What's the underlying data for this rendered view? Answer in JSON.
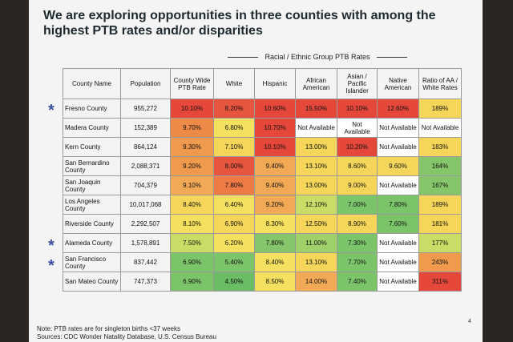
{
  "header": {
    "title": "We are exploring opportunities in three counties with among the highest PTB rates and/or disparities"
  },
  "table": {
    "group_header": "Racial / Ethnic Group PTB Rates",
    "columns": [
      "County Name",
      "Population",
      "County Wide PTB Rate",
      "White",
      "Hispanic",
      "African American",
      "Asian / Pacific Islander",
      "Native American",
      "Ratio of AA / White Rates"
    ],
    "rows": [
      {
        "marker": "*",
        "cells": [
          "Fresno County",
          "955,272",
          "10.10%",
          "8.20%",
          "10.60%",
          "15.50%",
          "10.10%",
          "12.60%",
          "189%"
        ],
        "colors": [
          "#f4f4f4",
          "#f4f4f4",
          "#e5483b",
          "#e8553e",
          "#e5483b",
          "#e5483b",
          "#e5483b",
          "#e5483b",
          "#f5d65a"
        ]
      },
      {
        "cells": [
          "Madera County",
          "152,389",
          "9.70%",
          "6.80%",
          "10.70%",
          "Not Available",
          "Not Available",
          "Not Available",
          "Not Available"
        ],
        "colors": [
          "#f4f4f4",
          "#f4f4f4",
          "#ee8a48",
          "#f5e15f",
          "#e5483b",
          "#ffffff",
          "#ffffff",
          "#ffffff",
          "#ffffff"
        ]
      },
      {
        "cells": [
          "Kern County",
          "864,124",
          "9.30%",
          "7.10%",
          "10.10%",
          "13.00%",
          "10.20%",
          "Not Available",
          "183%"
        ],
        "colors": [
          "#f4f4f4",
          "#f4f4f4",
          "#f09a4e",
          "#f5d65a",
          "#e5483b",
          "#f5d65a",
          "#e5483b",
          "#ffffff",
          "#f5d65a"
        ]
      },
      {
        "cells": [
          "San Bernardino County",
          "2,088,371",
          "9.20%",
          "8.00%",
          "9.40%",
          "13.10%",
          "8.60%",
          "9.60%",
          "164%"
        ],
        "colors": [
          "#f4f4f4",
          "#f4f4f4",
          "#f09a4e",
          "#e8553e",
          "#f2a956",
          "#f5d65a",
          "#f5d65a",
          "#f5d65a",
          "#86c66a"
        ]
      },
      {
        "cells": [
          "San Joaquin County",
          "704,379",
          "9.10%",
          "7.80%",
          "9.40%",
          "13.00%",
          "9.00%",
          "Not Available",
          "167%"
        ],
        "colors": [
          "#f4f4f4",
          "#f4f4f4",
          "#f2a956",
          "#ee7a45",
          "#f2a956",
          "#f5d65a",
          "#f5d65a",
          "#ffffff",
          "#86c66a"
        ]
      },
      {
        "cells": [
          "Los Angeles County",
          "10,017,068",
          "8.40%",
          "6.40%",
          "9.20%",
          "12.10%",
          "7.00%",
          "7.80%",
          "189%"
        ],
        "colors": [
          "#f4f4f4",
          "#f4f4f4",
          "#f5d65a",
          "#f5e15f",
          "#f2a956",
          "#c9dc66",
          "#7cc46a",
          "#7cc46a",
          "#f5d65a"
        ]
      },
      {
        "cells": [
          "Riverside County",
          "2,292,507",
          "8.10%",
          "6.90%",
          "8.30%",
          "12.50%",
          "8.90%",
          "7.60%",
          "181%"
        ],
        "colors": [
          "#f4f4f4",
          "#f4f4f4",
          "#f5e15f",
          "#f5d65a",
          "#f5e15f",
          "#f5d65a",
          "#f5d65a",
          "#7cc46a",
          "#f5d65a"
        ]
      },
      {
        "marker": "*",
        "cells": [
          "Alameda County",
          "1,578,891",
          "7.50%",
          "6.20%",
          "7.80%",
          "11.00%",
          "7.30%",
          "Not Available",
          "177%"
        ],
        "colors": [
          "#f4f4f4",
          "#f4f4f4",
          "#c9dc66",
          "#f5e15f",
          "#86c66a",
          "#9fd06a",
          "#7cc46a",
          "#ffffff",
          "#c9dc66"
        ]
      },
      {
        "marker": "*",
        "cells": [
          "San Francisco County",
          "837,442",
          "6.90%",
          "5.40%",
          "8.40%",
          "13.10%",
          "7.70%",
          "Not Available",
          "243%"
        ],
        "colors": [
          "#f4f4f4",
          "#f4f4f4",
          "#7cc46a",
          "#7cc46a",
          "#f5e15f",
          "#f5d65a",
          "#7cc46a",
          "#ffffff",
          "#f09a4e"
        ]
      },
      {
        "cells": [
          "San Mateo County",
          "747,373",
          "6.90%",
          "4.50%",
          "8.50%",
          "14.00%",
          "7.40%",
          "Not Available",
          "311%"
        ],
        "colors": [
          "#f4f4f4",
          "#f4f4f4",
          "#7cc46a",
          "#6abd64",
          "#f5e15f",
          "#f2a956",
          "#7cc46a",
          "#ffffff",
          "#e5483b"
        ]
      }
    ]
  },
  "footer": {
    "note": "Note: PTB rates are for singleton births <37 weeks",
    "sources": "Sources: CDC Wonder Natality Database, U.S. Census Bureau",
    "page_number": "4"
  }
}
